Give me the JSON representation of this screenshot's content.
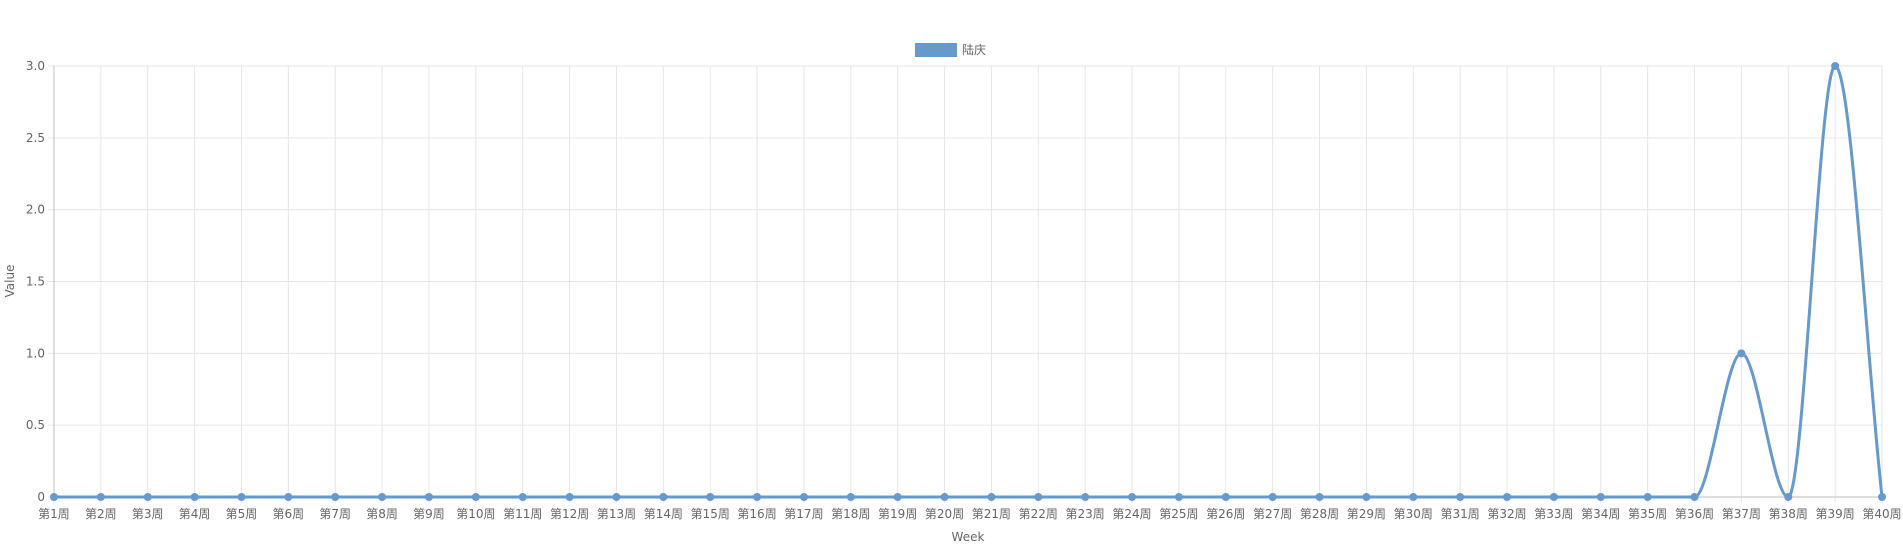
{
  "chart_data": {
    "type": "line",
    "xlabel": "Week",
    "ylabel": "Value",
    "categories": [
      "第1周",
      "第2周",
      "第3周",
      "第4周",
      "第5周",
      "第6周",
      "第7周",
      "第8周",
      "第9周",
      "第10周",
      "第11周",
      "第12周",
      "第13周",
      "第14周",
      "第15周",
      "第16周",
      "第17周",
      "第18周",
      "第19周",
      "第20周",
      "第21周",
      "第22周",
      "第23周",
      "第24周",
      "第25周",
      "第26周",
      "第27周",
      "第28周",
      "第29周",
      "第30周",
      "第31周",
      "第32周",
      "第33周",
      "第34周",
      "第35周",
      "第36周",
      "第37周",
      "第38周",
      "第39周",
      "第40周"
    ],
    "series": [
      {
        "name": "陆庆",
        "color": "#6699cc",
        "values": [
          0,
          0,
          0,
          0,
          0,
          0,
          0,
          0,
          0,
          0,
          0,
          0,
          0,
          0,
          0,
          0,
          0,
          0,
          0,
          0,
          0,
          0,
          0,
          0,
          0,
          0,
          0,
          0,
          0,
          0,
          0,
          0,
          0,
          0,
          0,
          0,
          1,
          0,
          3,
          0
        ]
      }
    ],
    "ylim": [
      0,
      3
    ],
    "yticks": [
      "0",
      "0.5",
      "1.0",
      "1.5",
      "2.0",
      "2.5",
      "3.0"
    ],
    "grid": true,
    "legend_position": "top-center"
  }
}
